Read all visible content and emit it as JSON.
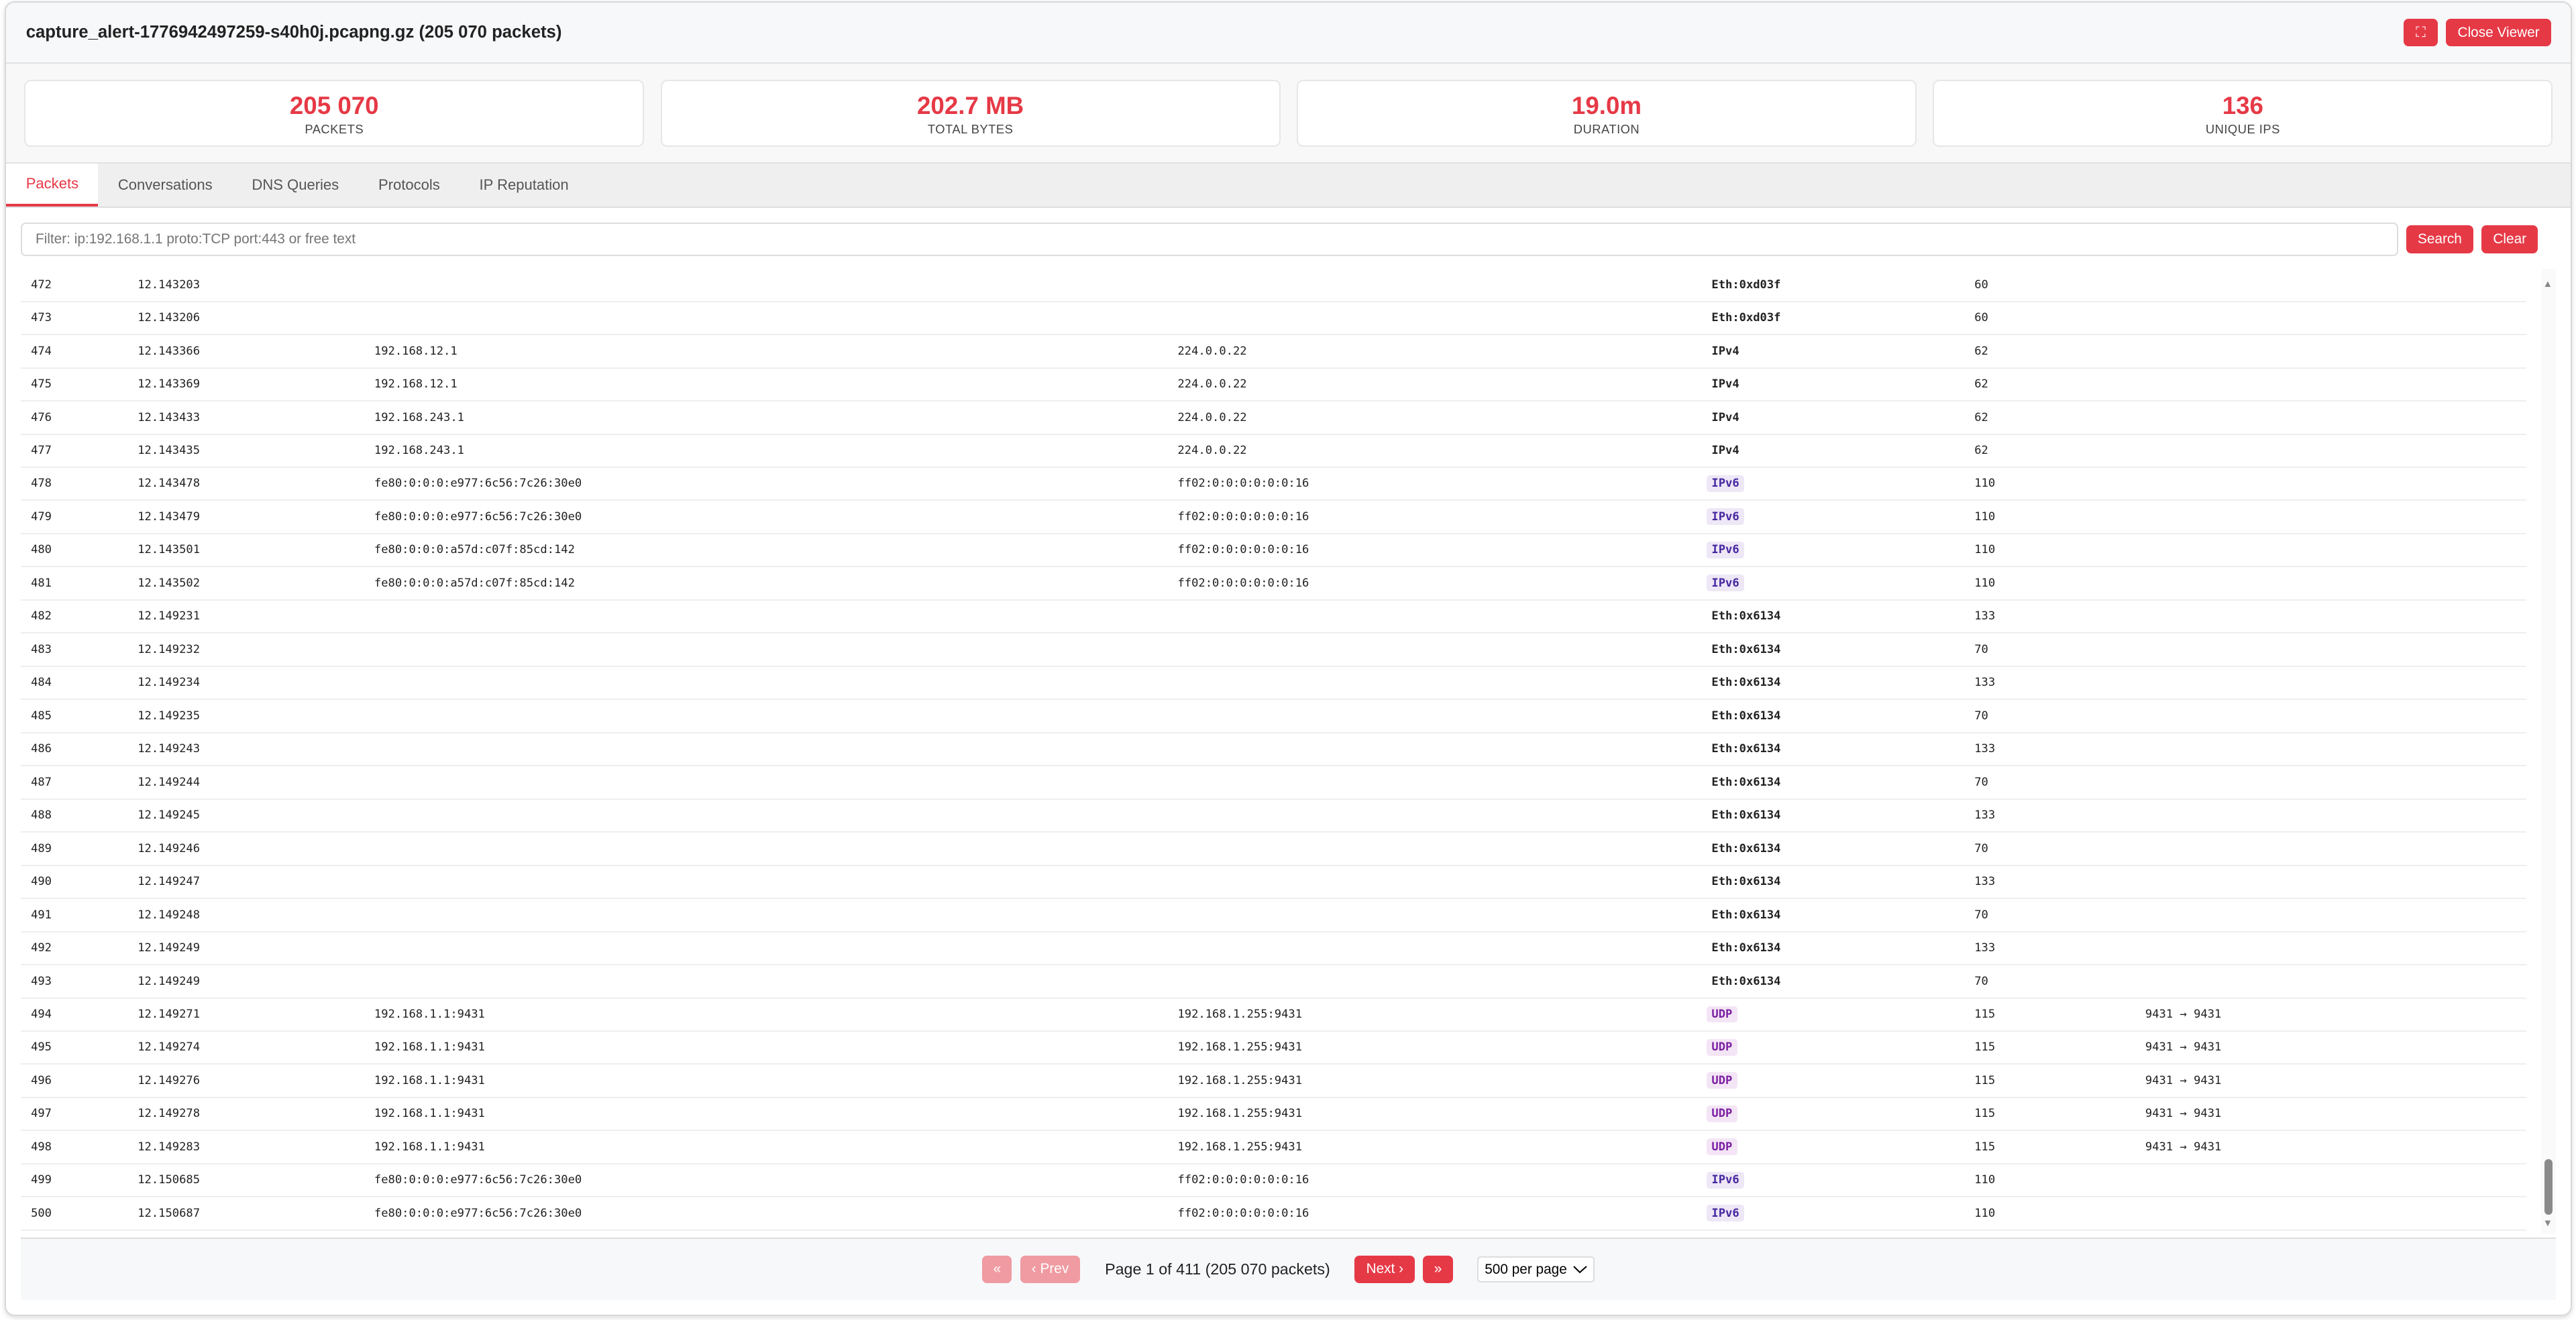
{
  "header": {
    "title": "capture_alert-1776942497259-s40h0j.pcapng.gz (205 070 packets)",
    "fullscreen_icon": "fullscreen-icon",
    "fullscreen_glyph": "⛶",
    "close_label": "Close Viewer"
  },
  "stats": [
    {
      "value": "205 070",
      "label": "PACKETS"
    },
    {
      "value": "202.7 MB",
      "label": "TOTAL BYTES"
    },
    {
      "value": "19.0m",
      "label": "DURATION"
    },
    {
      "value": "136",
      "label": "UNIQUE IPS"
    }
  ],
  "tabs": [
    {
      "label": "Packets",
      "active": true
    },
    {
      "label": "Conversations"
    },
    {
      "label": "DNS Queries"
    },
    {
      "label": "Protocols"
    },
    {
      "label": "IP Reputation"
    }
  ],
  "filter": {
    "placeholder": "Filter: ip:192.168.1.1 proto:TCP port:443 or free text",
    "value": "",
    "search_label": "Search",
    "clear_label": "Clear"
  },
  "colors": {
    "accent": "#e63946",
    "ipv6_bg": "#ede7f6",
    "ipv6_fg": "#4527a0",
    "udp_bg": "#f3e5f5",
    "udp_fg": "#7b1fa2"
  },
  "packets": [
    {
      "no": "472",
      "time": "12.143203",
      "src": "",
      "dst": "",
      "proto": "Eth:0xd03f",
      "len": "60",
      "info": ""
    },
    {
      "no": "473",
      "time": "12.143206",
      "src": "",
      "dst": "",
      "proto": "Eth:0xd03f",
      "len": "60",
      "info": ""
    },
    {
      "no": "474",
      "time": "12.143366",
      "src": "192.168.12.1",
      "dst": "224.0.0.22",
      "proto": "IPv4",
      "len": "62",
      "info": ""
    },
    {
      "no": "475",
      "time": "12.143369",
      "src": "192.168.12.1",
      "dst": "224.0.0.22",
      "proto": "IPv4",
      "len": "62",
      "info": ""
    },
    {
      "no": "476",
      "time": "12.143433",
      "src": "192.168.243.1",
      "dst": "224.0.0.22",
      "proto": "IPv4",
      "len": "62",
      "info": ""
    },
    {
      "no": "477",
      "time": "12.143435",
      "src": "192.168.243.1",
      "dst": "224.0.0.22",
      "proto": "IPv4",
      "len": "62",
      "info": ""
    },
    {
      "no": "478",
      "time": "12.143478",
      "src": "fe80:0:0:0:e977:6c56:7c26:30e0",
      "dst": "ff02:0:0:0:0:0:0:16",
      "proto": "IPv6",
      "len": "110",
      "info": ""
    },
    {
      "no": "479",
      "time": "12.143479",
      "src": "fe80:0:0:0:e977:6c56:7c26:30e0",
      "dst": "ff02:0:0:0:0:0:0:16",
      "proto": "IPv6",
      "len": "110",
      "info": ""
    },
    {
      "no": "480",
      "time": "12.143501",
      "src": "fe80:0:0:0:a57d:c07f:85cd:142",
      "dst": "ff02:0:0:0:0:0:0:16",
      "proto": "IPv6",
      "len": "110",
      "info": ""
    },
    {
      "no": "481",
      "time": "12.143502",
      "src": "fe80:0:0:0:a57d:c07f:85cd:142",
      "dst": "ff02:0:0:0:0:0:0:16",
      "proto": "IPv6",
      "len": "110",
      "info": ""
    },
    {
      "no": "482",
      "time": "12.149231",
      "src": "",
      "dst": "",
      "proto": "Eth:0x6134",
      "len": "133",
      "info": ""
    },
    {
      "no": "483",
      "time": "12.149232",
      "src": "",
      "dst": "",
      "proto": "Eth:0x6134",
      "len": "70",
      "info": ""
    },
    {
      "no": "484",
      "time": "12.149234",
      "src": "",
      "dst": "",
      "proto": "Eth:0x6134",
      "len": "133",
      "info": ""
    },
    {
      "no": "485",
      "time": "12.149235",
      "src": "",
      "dst": "",
      "proto": "Eth:0x6134",
      "len": "70",
      "info": ""
    },
    {
      "no": "486",
      "time": "12.149243",
      "src": "",
      "dst": "",
      "proto": "Eth:0x6134",
      "len": "133",
      "info": ""
    },
    {
      "no": "487",
      "time": "12.149244",
      "src": "",
      "dst": "",
      "proto": "Eth:0x6134",
      "len": "70",
      "info": ""
    },
    {
      "no": "488",
      "time": "12.149245",
      "src": "",
      "dst": "",
      "proto": "Eth:0x6134",
      "len": "133",
      "info": ""
    },
    {
      "no": "489",
      "time": "12.149246",
      "src": "",
      "dst": "",
      "proto": "Eth:0x6134",
      "len": "70",
      "info": ""
    },
    {
      "no": "490",
      "time": "12.149247",
      "src": "",
      "dst": "",
      "proto": "Eth:0x6134",
      "len": "133",
      "info": ""
    },
    {
      "no": "491",
      "time": "12.149248",
      "src": "",
      "dst": "",
      "proto": "Eth:0x6134",
      "len": "70",
      "info": ""
    },
    {
      "no": "492",
      "time": "12.149249",
      "src": "",
      "dst": "",
      "proto": "Eth:0x6134",
      "len": "133",
      "info": ""
    },
    {
      "no": "493",
      "time": "12.149249",
      "src": "",
      "dst": "",
      "proto": "Eth:0x6134",
      "len": "70",
      "info": ""
    },
    {
      "no": "494",
      "time": "12.149271",
      "src": "192.168.1.1:9431",
      "dst": "192.168.1.255:9431",
      "proto": "UDP",
      "len": "115",
      "info": "9431 → 9431"
    },
    {
      "no": "495",
      "time": "12.149274",
      "src": "192.168.1.1:9431",
      "dst": "192.168.1.255:9431",
      "proto": "UDP",
      "len": "115",
      "info": "9431 → 9431"
    },
    {
      "no": "496",
      "time": "12.149276",
      "src": "192.168.1.1:9431",
      "dst": "192.168.1.255:9431",
      "proto": "UDP",
      "len": "115",
      "info": "9431 → 9431"
    },
    {
      "no": "497",
      "time": "12.149278",
      "src": "192.168.1.1:9431",
      "dst": "192.168.1.255:9431",
      "proto": "UDP",
      "len": "115",
      "info": "9431 → 9431"
    },
    {
      "no": "498",
      "time": "12.149283",
      "src": "192.168.1.1:9431",
      "dst": "192.168.1.255:9431",
      "proto": "UDP",
      "len": "115",
      "info": "9431 → 9431"
    },
    {
      "no": "499",
      "time": "12.150685",
      "src": "fe80:0:0:0:e977:6c56:7c26:30e0",
      "dst": "ff02:0:0:0:0:0:0:16",
      "proto": "IPv6",
      "len": "110",
      "info": ""
    },
    {
      "no": "500",
      "time": "12.150687",
      "src": "fe80:0:0:0:e977:6c56:7c26:30e0",
      "dst": "ff02:0:0:0:0:0:0:16",
      "proto": "IPv6",
      "len": "110",
      "info": ""
    }
  ],
  "pagination": {
    "first_label": "«",
    "prev_label": "‹ Prev",
    "info": "Page 1 of 411 (205 070 packets)",
    "next_label": "Next ›",
    "last_label": "»",
    "per_page": "500 per page"
  }
}
